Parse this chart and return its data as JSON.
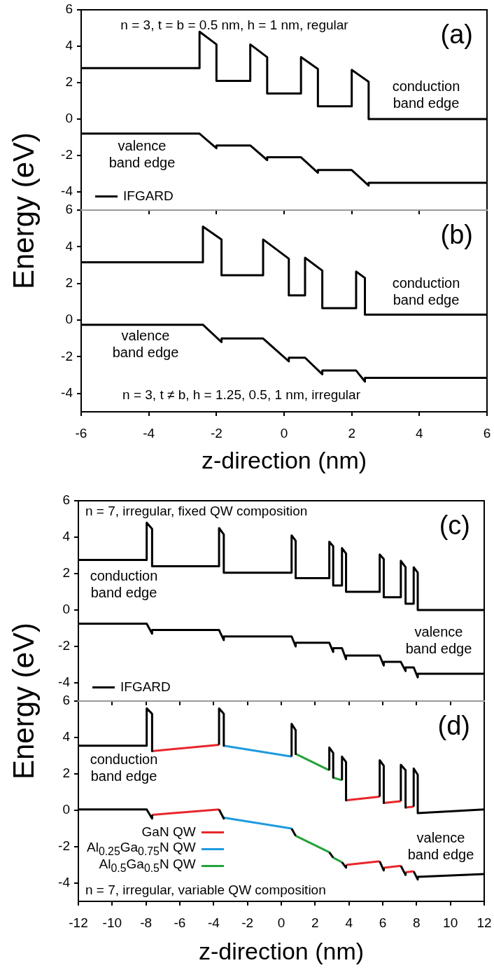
{
  "chart_data": [
    {
      "type": "line",
      "title": "(a)",
      "ylabel": "Energy (eV)",
      "xlim": [
        -6,
        6
      ],
      "ylim": [
        -5,
        6
      ],
      "xticks": [
        -6,
        -4,
        -2,
        0,
        2,
        4,
        6
      ],
      "yticks": [
        -4,
        -2,
        0,
        2,
        4,
        6
      ],
      "tick_labels": "y",
      "grid": false,
      "legend": "bottom left",
      "marker": "none",
      "line_style": "solid",
      "annotations": [
        "n = 3, t = b = 0.5 nm, h = 1 nm, regular",
        "conduction band edge",
        "valence band edge"
      ],
      "series": [
        {
          "name": "IFGARD",
          "color": "#000000",
          "x": [
            -6,
            -2.5,
            -2.5,
            -2,
            -2,
            -1,
            -1,
            -0.5,
            -0.5,
            0.5,
            0.5,
            1,
            1,
            2,
            2,
            2.5,
            2.5,
            6
          ],
          "values": [
            2.8,
            2.8,
            4.8,
            4.1,
            2.1,
            2.1,
            4.1,
            3.4,
            1.4,
            1.4,
            3.4,
            2.75,
            0.7,
            0.7,
            2.7,
            2.05,
            0,
            0
          ]
        },
        {
          "color": "#000000",
          "x": [
            -6,
            -2.5,
            -2,
            -2,
            -1,
            -0.5,
            -0.5,
            0.5,
            1,
            1,
            2,
            2.5,
            2.5,
            6
          ],
          "values": [
            -0.8,
            -0.8,
            -1.6,
            -1.45,
            -1.45,
            -2.25,
            -2.1,
            -2.1,
            -2.95,
            -2.8,
            -2.8,
            -3.65,
            -3.5,
            -3.5
          ]
        }
      ]
    },
    {
      "type": "line",
      "title": "(b)",
      "xlabel": "z-direction (nm)",
      "xlim": [
        -6,
        6
      ],
      "ylim": [
        -5,
        6
      ],
      "xticks": [
        -6,
        -4,
        -2,
        0,
        2,
        4,
        6
      ],
      "yticks": [
        -4,
        -2,
        0,
        2,
        4,
        6
      ],
      "grid": false,
      "marker": "none",
      "line_style": "solid",
      "annotations": [
        "n = 3, t ≠ b, h = 1.25, 0.5, 1 nm, irregular",
        "conduction band edge",
        "valence band edge"
      ],
      "series": [
        {
          "color": "#000000",
          "x": [
            -6,
            -2.4,
            -2.4,
            -1.85,
            -1.85,
            -0.62,
            -0.62,
            0.14,
            0.14,
            0.62,
            0.62,
            1.13,
            1.13,
            2.13,
            2.13,
            2.39,
            2.39,
            6
          ],
          "values": [
            3.15,
            3.15,
            5.1,
            4.4,
            2.45,
            2.45,
            4.4,
            3.35,
            1.35,
            1.35,
            3.4,
            2.7,
            0.65,
            0.65,
            2.65,
            2.3,
            0.3,
            0.3
          ]
        },
        {
          "color": "#000000",
          "x": [
            -6,
            -2.4,
            -1.85,
            -1.85,
            -0.62,
            0.14,
            0.14,
            0.62,
            1.13,
            1.13,
            2.13,
            2.39,
            2.39,
            6
          ],
          "values": [
            -0.25,
            -0.25,
            -1.2,
            -1.0,
            -1.0,
            -2.25,
            -2.05,
            -2.05,
            -2.95,
            -2.75,
            -2.75,
            -3.35,
            -3.15,
            -3.15
          ]
        }
      ]
    },
    {
      "type": "line",
      "title": "(c)",
      "ylabel": "Energy (eV)",
      "xlim": [
        -12,
        12
      ],
      "ylim": [
        -5,
        6
      ],
      "xticks": [
        -12,
        -10,
        -8,
        -6,
        -4,
        -2,
        0,
        2,
        4,
        6,
        8,
        10,
        12
      ],
      "yticks": [
        -4,
        -2,
        0,
        2,
        4,
        6
      ],
      "tick_labels": "y",
      "grid": false,
      "legend": "bottom left",
      "marker": "none",
      "line_style": "solid",
      "annotations": [
        "n = 7, irregular, fixed QW composition",
        "conduction band edge",
        "valence band edge"
      ],
      "series": [
        {
          "name": "IFGARD",
          "color": "#000000",
          "x": [
            -12,
            -7.96,
            -7.96,
            -7.64,
            -7.64,
            -3.68,
            -3.68,
            -3.4,
            -3.4,
            0.61,
            0.61,
            0.85,
            0.85,
            2.84,
            2.84,
            3.07,
            3.07,
            3.59,
            3.59,
            3.83,
            3.83,
            5.82,
            5.82,
            6.06,
            6.06,
            7.07,
            7.07,
            7.35,
            7.35,
            7.83,
            7.83,
            8.07,
            8.07,
            12
          ],
          "values": [
            2.75,
            2.75,
            4.8,
            4.45,
            2.4,
            2.4,
            4.5,
            4.15,
            2.05,
            2.05,
            4.1,
            3.8,
            1.75,
            1.75,
            3.75,
            3.5,
            1.35,
            1.35,
            3.4,
            3.1,
            1.0,
            1.0,
            3.05,
            2.8,
            0.7,
            0.7,
            2.7,
            2.35,
            0.35,
            0.35,
            2.35,
            2.05,
            0,
            0
          ]
        },
        {
          "color": "#000000",
          "x": [
            -12,
            -7.96,
            -7.64,
            -7.64,
            -3.68,
            -3.4,
            -3.4,
            0.61,
            0.85,
            0.85,
            2.84,
            3.07,
            3.07,
            3.59,
            3.83,
            3.83,
            5.82,
            6.06,
            6.06,
            7.07,
            7.35,
            7.35,
            7.83,
            8.07,
            8.07,
            12
          ],
          "values": [
            -0.75,
            -0.75,
            -1.3,
            -1.1,
            -1.1,
            -1.65,
            -1.45,
            -1.45,
            -2.0,
            -1.8,
            -1.8,
            -2.3,
            -2.1,
            -2.1,
            -2.7,
            -2.5,
            -2.5,
            -3.05,
            -2.85,
            -2.85,
            -3.35,
            -3.15,
            -3.15,
            -3.7,
            -3.5,
            -3.5
          ]
        }
      ]
    },
    {
      "type": "line",
      "title": "(d)",
      "xlabel": "z-direction (nm)",
      "xlim": [
        -12,
        12
      ],
      "ylim": [
        -5,
        6
      ],
      "xticks": [
        -12,
        -10,
        -8,
        -6,
        -4,
        -2,
        0,
        2,
        4,
        6,
        8,
        10,
        12
      ],
      "yticks": [
        -4,
        -2,
        0,
        2,
        4,
        6
      ],
      "grid": false,
      "legend": "bottom left",
      "marker": "none",
      "line_style": "solid",
      "annotations": [
        "n = 7, irregular, variable QW composition",
        "conduction band edge",
        "valence band edge"
      ],
      "series": [
        {
          "color": "#000000",
          "x": [
            -12,
            -7.96,
            -7.96,
            -7.64,
            -7.64,
            null,
            -3.68,
            -3.68,
            -3.4,
            -3.4,
            null,
            0.61,
            0.61,
            0.85,
            0.85,
            null,
            2.84,
            2.84,
            3.07,
            3.07,
            null,
            3.59,
            3.59,
            3.83,
            3.83,
            null,
            5.82,
            5.82,
            6.06,
            6.06,
            null,
            7.07,
            7.07,
            7.35,
            7.35,
            null,
            7.83,
            7.83,
            8.07,
            8.07,
            12
          ],
          "values": [
            3.55,
            3.55,
            5.6,
            5.3,
            3.25,
            null,
            3.6,
            5.6,
            5.3,
            3.55,
            null,
            2.95,
            4.75,
            4.4,
            3.1,
            null,
            2.2,
            3.45,
            3.15,
            1.8,
            null,
            1.65,
            2.95,
            2.65,
            0.55,
            null,
            0.75,
            2.75,
            2.45,
            0.4,
            null,
            0.5,
            2.5,
            2.2,
            0.15,
            null,
            0.2,
            2.3,
            1.95,
            -0.15,
            0.05
          ]
        },
        {
          "name": "GaN QW",
          "color": "#e8262b",
          "x": [
            -7.64,
            -3.68,
            null,
            3.83,
            5.82,
            null,
            6.06,
            7.07,
            null,
            7.35,
            7.83
          ],
          "values": [
            3.25,
            3.6,
            null,
            0.55,
            0.75,
            null,
            0.4,
            0.5,
            null,
            0.15,
            0.2
          ]
        },
        {
          "name": "Al$_{0.25}$Ga$_{0.75}$N QW",
          "color": "#1e9ae0",
          "x": [
            -3.4,
            0.61
          ],
          "values": [
            3.55,
            2.95
          ]
        },
        {
          "name": "Al$_{0.5}$Ga$_{0.5}$N QW",
          "color": "#23a23a",
          "x": [
            0.85,
            2.84,
            null,
            3.07,
            3.59
          ],
          "values": [
            3.1,
            2.2,
            null,
            1.8,
            1.65
          ]
        },
        {
          "color": "#000000",
          "x": [
            -12,
            -7.96,
            -7.64,
            -7.64,
            null,
            -3.68,
            -3.4,
            -3.4,
            null,
            0.61,
            0.85,
            null,
            2.84,
            3.07,
            null,
            3.59,
            3.83,
            3.83,
            null,
            5.82,
            6.06,
            6.06,
            null,
            7.07,
            7.35,
            7.35,
            null,
            7.83,
            8.07,
            8.07,
            12
          ],
          "values": [
            0.05,
            0.05,
            -0.45,
            -0.25,
            null,
            0.05,
            -0.45,
            -0.4,
            null,
            -1.0,
            -1.4,
            null,
            -2.3,
            -2.6,
            null,
            -2.85,
            -3.15,
            -3.0,
            null,
            -2.8,
            -3.3,
            -3.15,
            null,
            -3.05,
            -3.55,
            -3.4,
            null,
            -3.35,
            -3.8,
            -3.65,
            -3.5
          ]
        },
        {
          "color": "#e8262b",
          "x": [
            -7.64,
            -3.68,
            null,
            3.83,
            5.82,
            null,
            6.06,
            7.07,
            null,
            7.35,
            7.83
          ],
          "values": [
            -0.25,
            0.05,
            null,
            -3.0,
            -2.8,
            null,
            -3.15,
            -3.05,
            null,
            -3.4,
            -3.35
          ]
        },
        {
          "color": "#1e9ae0",
          "x": [
            -3.4,
            0.61
          ],
          "values": [
            -0.4,
            -1.0
          ]
        },
        {
          "color": "#23a23a",
          "x": [
            0.85,
            2.84,
            null,
            3.07,
            3.59
          ],
          "values": [
            -1.4,
            -2.3,
            null,
            -2.6,
            -2.85
          ]
        }
      ]
    }
  ]
}
